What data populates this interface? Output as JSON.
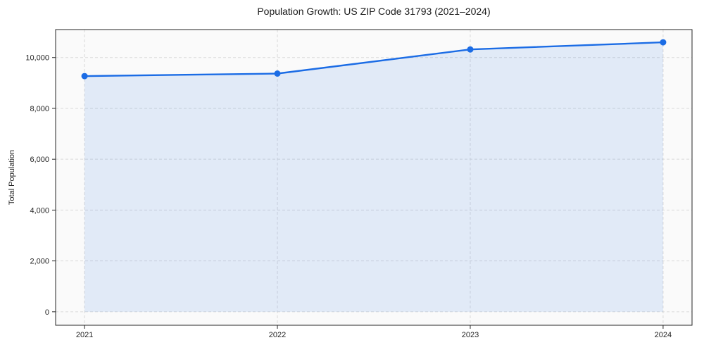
{
  "chart_data": {
    "type": "line",
    "title": "Population Growth: US ZIP Code 31793 (2021–2024)",
    "xlabel": "",
    "ylabel": "Total Population",
    "x": [
      2021,
      2022,
      2023,
      2024
    ],
    "series": [
      {
        "name": "Total Population",
        "values": [
          9270,
          9370,
          10320,
          10600
        ]
      }
    ],
    "xlim": [
      2020.85,
      2024.15
    ],
    "ylim": [
      -530,
      11100
    ],
    "xticks": [
      2021,
      2022,
      2023,
      2024
    ],
    "xtick_labels": [
      "2021",
      "2022",
      "2023",
      "2024"
    ],
    "yticks": [
      0,
      2000,
      4000,
      6000,
      8000,
      10000
    ],
    "ytick_labels": [
      "0",
      "2,000",
      "4,000",
      "6,000",
      "8,000",
      "10,000"
    ],
    "grid": true,
    "grid_style": "dashed",
    "legend_position": "none",
    "area_fill": true,
    "marker": "circle",
    "colors": {
      "line": "#1b6ce5",
      "fill": "#1b6ce5",
      "fill_opacity": 0.11,
      "grid": "#d9d9d9",
      "spine": "#262626",
      "text": "#262626",
      "plot_bg": "#fafafa",
      "page_bg": "#ffffff"
    }
  }
}
